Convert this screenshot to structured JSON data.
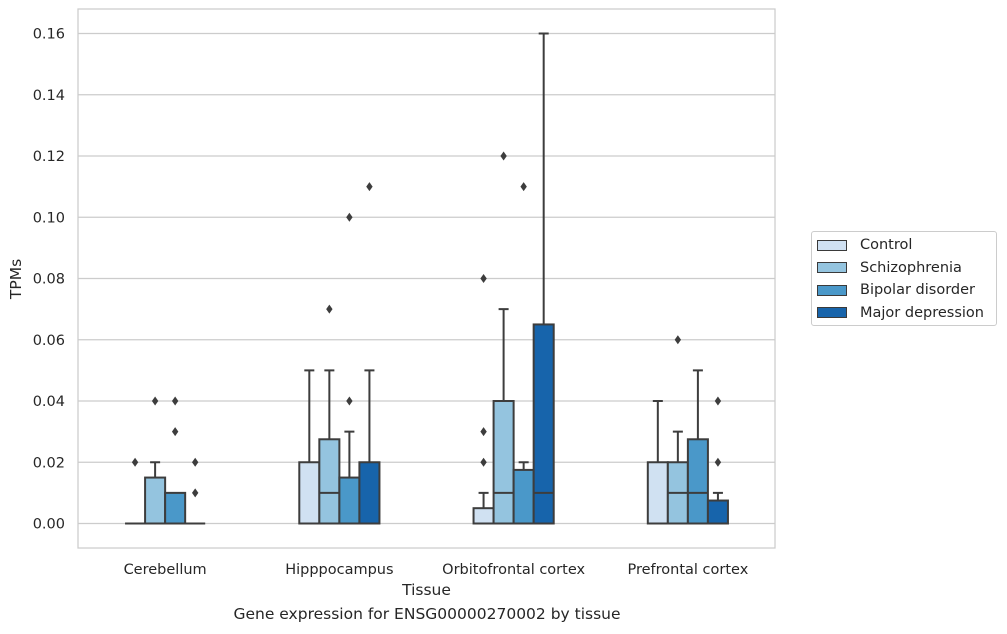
{
  "chart_data": {
    "type": "box",
    "ylabel": "TPMs",
    "xlabel": "Tissue",
    "caption": "Gene expression for ENSG00000270002 by tissue",
    "ylim": [
      -0.008,
      0.168
    ],
    "yticks": [
      "0.00",
      "0.02",
      "0.04",
      "0.06",
      "0.08",
      "0.10",
      "0.12",
      "0.14",
      "0.16"
    ],
    "ytick_values": [
      0,
      0.02,
      0.04,
      0.06,
      0.08,
      0.1,
      0.12,
      0.14,
      0.16
    ],
    "grid": "y",
    "legend_position": "right",
    "categories": [
      "Cerebellum",
      "Hipppocampus",
      "Orbitofrontal cortex",
      "Prefrontal cortex"
    ],
    "series": [
      {
        "name": "Control",
        "color": "#d0e1f2",
        "boxes": [
          {
            "q1": 0,
            "median": 0,
            "q3": 0,
            "whislo": 0,
            "whishi": 0,
            "fliers": [
              0.02
            ]
          },
          {
            "q1": 0,
            "median": 0,
            "q3": 0.02,
            "whislo": 0,
            "whishi": 0.05,
            "fliers": []
          },
          {
            "q1": 0,
            "median": 0,
            "q3": 0.005,
            "whislo": 0,
            "whishi": 0.01,
            "fliers": [
              0.02,
              0.03,
              0.08
            ]
          },
          {
            "q1": 0,
            "median": 0,
            "q3": 0.02,
            "whislo": 0,
            "whishi": 0.04,
            "fliers": []
          }
        ]
      },
      {
        "name": "Schizophrenia",
        "color": "#94c4df",
        "boxes": [
          {
            "q1": 0,
            "median": 0,
            "q3": 0.015,
            "whislo": 0,
            "whishi": 0.02,
            "fliers": [
              0.04
            ]
          },
          {
            "q1": 0,
            "median": 0.01,
            "q3": 0.0275,
            "whislo": 0,
            "whishi": 0.05,
            "fliers": [
              0.07
            ]
          },
          {
            "q1": 0,
            "median": 0.01,
            "q3": 0.04,
            "whislo": 0,
            "whishi": 0.07,
            "fliers": [
              0.12
            ]
          },
          {
            "q1": 0,
            "median": 0.01,
            "q3": 0.02,
            "whislo": 0,
            "whishi": 0.03,
            "fliers": [
              0.06
            ]
          }
        ]
      },
      {
        "name": "Bipolar disorder",
        "color": "#4a98c9",
        "boxes": [
          {
            "q1": 0,
            "median": 0,
            "q3": 0.01,
            "whislo": 0,
            "whishi": 0.01,
            "fliers": [
              0.03,
              0.04
            ]
          },
          {
            "q1": 0,
            "median": 0,
            "q3": 0.015,
            "whislo": 0,
            "whishi": 0.03,
            "fliers": [
              0.04,
              0.1
            ]
          },
          {
            "q1": 0,
            "median": 0,
            "q3": 0.0175,
            "whislo": 0,
            "whishi": 0.02,
            "fliers": [
              0.11
            ]
          },
          {
            "q1": 0,
            "median": 0.01,
            "q3": 0.0275,
            "whislo": 0,
            "whishi": 0.05,
            "fliers": []
          }
        ]
      },
      {
        "name": "Major depression",
        "color": "#1764ab",
        "boxes": [
          {
            "q1": 0,
            "median": 0,
            "q3": 0,
            "whislo": 0,
            "whishi": 0,
            "fliers": [
              0.01,
              0.02
            ]
          },
          {
            "q1": 0,
            "median": 0,
            "q3": 0.02,
            "whislo": 0,
            "whishi": 0.05,
            "fliers": [
              0.11
            ]
          },
          {
            "q1": 0,
            "median": 0.01,
            "q3": 0.065,
            "whislo": 0,
            "whishi": 0.16,
            "fliers": []
          },
          {
            "q1": 0,
            "median": 0,
            "q3": 0.0075,
            "whislo": 0,
            "whishi": 0.01,
            "fliers": [
              0.02,
              0.04
            ]
          }
        ]
      }
    ]
  }
}
